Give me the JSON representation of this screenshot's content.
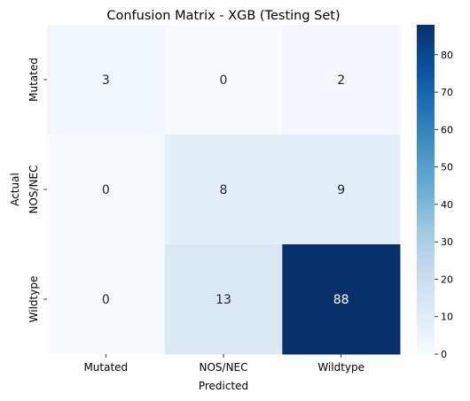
{
  "chart_data": {
    "type": "heatmap",
    "title": "Confusion Matrix - XGB (Testing Set)",
    "xlabel": "Predicted",
    "ylabel": "Actual",
    "x_categories": [
      "Mutated",
      "NOS/NEC",
      "Wildtype"
    ],
    "y_categories": [
      "Mutated",
      "NOS/NEC",
      "Wildtype"
    ],
    "values": [
      [
        3,
        0,
        2
      ],
      [
        0,
        8,
        9
      ],
      [
        0,
        13,
        88
      ]
    ],
    "colormap": "Blues",
    "color_min": "#f7fbff",
    "color_max": "#08306b",
    "colorbar": {
      "min": 0,
      "max": 88,
      "ticks": [
        0,
        10,
        20,
        30,
        40,
        50,
        60,
        70,
        80
      ]
    },
    "annot_dark_text": "#262626",
    "annot_light_text": "#ffffff"
  }
}
